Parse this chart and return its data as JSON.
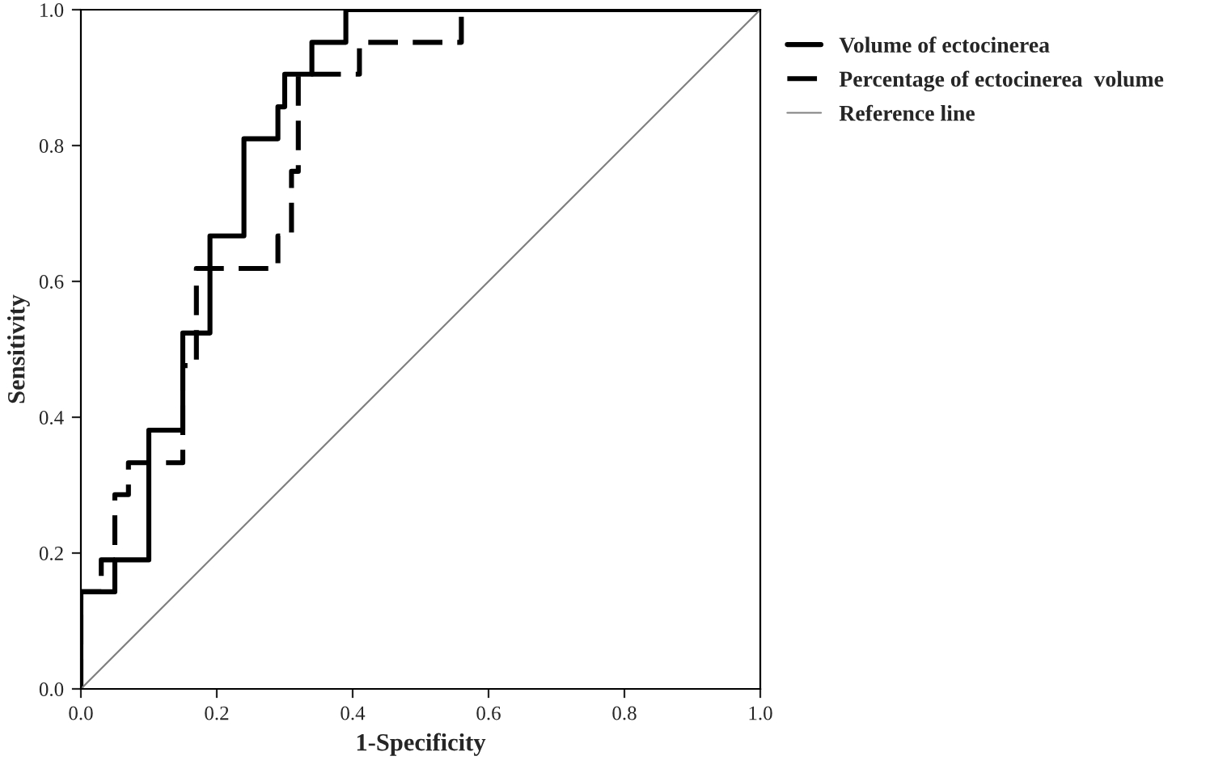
{
  "chart_data": {
    "type": "step",
    "xlabel": "1-Specificity",
    "ylabel": "Sensitivity",
    "xlim": [
      0,
      1
    ],
    "ylim": [
      0,
      1
    ],
    "xticks": [
      {
        "value": 0,
        "label": "0.0"
      },
      {
        "value": 0.2,
        "label": "0.2"
      },
      {
        "value": 0.4,
        "label": "0.4"
      },
      {
        "value": 0.6,
        "label": "0.6"
      },
      {
        "value": 0.8,
        "label": "0.8"
      },
      {
        "value": 1,
        "label": "1.0"
      }
    ],
    "yticks": [
      {
        "value": 0,
        "label": "0.0"
      },
      {
        "value": 0.2,
        "label": "0.2"
      },
      {
        "value": 0.4,
        "label": "0.4"
      },
      {
        "value": 0.6,
        "label": "0.6"
      },
      {
        "value": 0.8,
        "label": "0.8"
      },
      {
        "value": 1,
        "label": "1.0"
      }
    ],
    "grid": false,
    "legend": "top right",
    "series": [
      {
        "name": "Volume of ectocinerea",
        "color": "#000000",
        "line_style": "solid",
        "x": [
          0,
          0,
          0.05,
          0.1,
          0.15,
          0.19,
          0.24,
          0.29,
          0.3,
          0.34,
          0.39,
          1.0
        ],
        "values": [
          0,
          0.143,
          0.19,
          0.381,
          0.524,
          0.667,
          0.81,
          0.857,
          0.905,
          0.952,
          1.0,
          1.0
        ]
      },
      {
        "name": "Percentage of ectocinerea  volume",
        "color": "#000000",
        "line_style": "dashed",
        "x": [
          0,
          0,
          0.03,
          0.05,
          0.07,
          0.15,
          0.17,
          0.29,
          0.31,
          0.32,
          0.41,
          0.56,
          1.0
        ],
        "values": [
          0,
          0.143,
          0.19,
          0.286,
          0.333,
          0.476,
          0.619,
          0.667,
          0.762,
          0.905,
          0.952,
          1.0,
          1.0
        ]
      },
      {
        "name": "Reference line",
        "type": "line",
        "color": "#808080",
        "line_style": "solid",
        "x": [
          0,
          1
        ],
        "values": [
          0,
          1
        ]
      }
    ]
  }
}
